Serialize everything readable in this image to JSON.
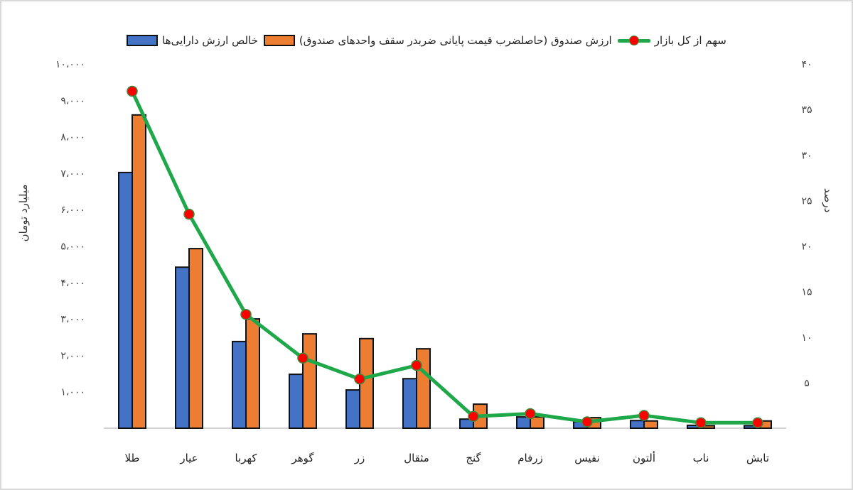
{
  "chart_data": {
    "type": "bar",
    "combo": "bar+line (secondary axis)",
    "title": "",
    "categories": [
      "طلا",
      "عیار",
      "کهربا",
      "گوهر",
      "زر",
      "مثقال",
      "گنج",
      "زرفام",
      "نفیس",
      "ألتون",
      "ناب",
      "تابش"
    ],
    "series": [
      {
        "name": "خالص ارزش دارایی‌ها",
        "type": "bar",
        "axis": "left",
        "color": "#4472c4",
        "values": [
          7020,
          4420,
          2380,
          1480,
          1050,
          1360,
          250,
          310,
          180,
          210,
          80,
          70
        ]
      },
      {
        "name": "ارزش صندوق  (حاصلضرب قیمت پایانی ضربدر سقف واحدهای صندوق)",
        "type": "bar",
        "axis": "left",
        "color": "#ed7d31",
        "values": [
          8600,
          4930,
          3000,
          2590,
          2460,
          2180,
          660,
          310,
          290,
          200,
          70,
          200
        ]
      },
      {
        "name": "سهم از کل بازار",
        "type": "line",
        "axis": "right",
        "color": "#1fa84a",
        "marker_color": "#ff0000",
        "values": [
          37.0,
          23.5,
          12.5,
          7.7,
          5.4,
          6.9,
          1.3,
          1.6,
          0.7,
          1.4,
          0.6,
          0.6
        ]
      }
    ],
    "ylabel": "میلیارد تومان",
    "y2label": "درصد",
    "xlabel": "",
    "ylim": [
      0,
      10000
    ],
    "y2lim": [
      0,
      40
    ],
    "yticks": [
      "۱۰،۰۰۰",
      "۹،۰۰۰",
      "۸،۰۰۰",
      "۷،۰۰۰",
      "۶،۰۰۰",
      "۵،۰۰۰",
      "۴،۰۰۰",
      "۳،۰۰۰",
      "۲،۰۰۰",
      "۱،۰۰۰"
    ],
    "y2ticks": [
      "۴۰",
      "۳۵",
      "۳۰",
      "۲۵",
      "۲۰",
      "۱۵",
      "۱۰",
      "۵"
    ],
    "grid": false,
    "legend_position": "top"
  },
  "legend": {
    "items": [
      {
        "label": "سهم از کل بازار",
        "kind": "line"
      },
      {
        "label": "ارزش صندوق  (حاصلضرب قیمت پایانی ضربدر سقف واحدهای صندوق)",
        "kind": "bar",
        "color": "#ed7d31"
      },
      {
        "label": "خالص ارزش دارایی‌ها",
        "kind": "bar",
        "color": "#4472c4"
      }
    ]
  },
  "axes": {
    "left_title": "میلیارد تومان",
    "right_title": "درصد"
  }
}
